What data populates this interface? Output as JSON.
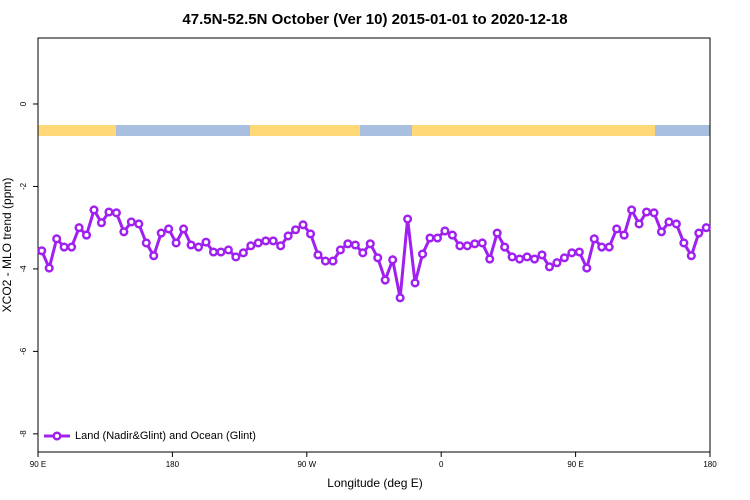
{
  "chart_data": {
    "type": "line",
    "title": "47.5N-52.5N October (Ver 10)   2015-01-01 to 2020-12-18",
    "x_label": "Longitude (deg E)",
    "y_label": "XCO2 - MLO trend (ppm)",
    "xlim": [
      90,
      540
    ],
    "ylim": [
      -8.44,
      1.6
    ],
    "xticks": [
      {
        "value": 90,
        "label": "90 E"
      },
      180,
      {
        "value": 270,
        "label": "90 W"
      },
      {
        "value": 360,
        "label": "0"
      },
      {
        "value": 450,
        "label": "90 E"
      },
      {
        "value": 540,
        "label": "180"
      }
    ],
    "yticks": [
      0,
      -2,
      -4,
      -6,
      -8
    ],
    "legend": "bottom-left",
    "series": [
      {
        "name": "Land (Nadir&Glint) and Ocean (Glint)",
        "color": "#a020f0",
        "x": [
          92.5,
          97.5,
          102.5,
          107.5,
          112.5,
          117.5,
          122.5,
          127.5,
          132.5,
          137.5,
          142.5,
          147.5,
          152.5,
          157.5,
          162.5,
          167.5,
          172.5,
          177.5,
          182.5,
          187.5,
          192.5,
          197.5,
          202.5,
          207.5,
          212.5,
          217.5,
          222.5,
          227.5,
          232.5,
          237.5,
          242.5,
          247.5,
          252.5,
          257.5,
          262.5,
          267.5,
          272.5,
          277.5,
          282.5,
          287.5,
          292.5,
          297.5,
          302.5,
          307.5,
          312.5,
          317.5,
          322.5,
          327.5,
          332.5,
          337.5,
          342.5,
          347.5,
          352.5,
          357.5,
          362.5,
          367.5,
          372.5,
          377.5,
          382.5,
          387.5,
          392.5,
          397.5,
          402.5,
          407.5,
          412.5,
          417.5,
          422.5,
          427.5,
          432.5,
          437.5,
          442.5,
          447.5,
          452.5,
          457.5,
          462.5,
          467.5,
          472.5,
          477.5,
          482.5,
          487.5,
          492.5,
          497.5,
          502.5,
          507.5,
          512.5,
          517.5,
          522.5,
          527.5,
          532.5,
          537.5
        ],
        "values": [
          -3.56,
          -3.98,
          -3.27,
          -3.47,
          -3.47,
          -3.0,
          -3.18,
          -2.57,
          -2.88,
          -2.62,
          -2.64,
          -3.1,
          -2.86,
          -2.91,
          -3.37,
          -3.68,
          -3.13,
          -3.03,
          -3.37,
          -3.03,
          -3.42,
          -3.47,
          -3.35,
          -3.59,
          -3.59,
          -3.54,
          -3.71,
          -3.61,
          -3.44,
          -3.37,
          -3.32,
          -3.32,
          -3.44,
          -3.2,
          -3.05,
          -2.93,
          -3.15,
          -3.66,
          -3.81,
          -3.81,
          -3.54,
          -3.39,
          -3.42,
          -3.61,
          -3.39,
          -3.73,
          -4.27,
          -3.78,
          -4.7,
          -2.79,
          -4.34,
          -3.64,
          -3.25,
          -3.25,
          -3.08,
          -3.18,
          -3.44,
          -3.44,
          -3.39,
          -3.37,
          -3.76,
          -3.13,
          -3.47,
          -3.71,
          -3.76,
          -3.71,
          -3.76,
          -3.66,
          -3.95,
          -3.85,
          -3.73,
          -3.61,
          -3.59,
          -3.98,
          -3.27,
          -3.47,
          -3.47,
          -3.03,
          -3.18,
          -2.57,
          -2.91,
          -2.62,
          -2.64,
          -3.1,
          -2.86,
          -2.91,
          -3.37,
          -3.68,
          -3.13,
          -3.0
        ]
      }
    ]
  }
}
